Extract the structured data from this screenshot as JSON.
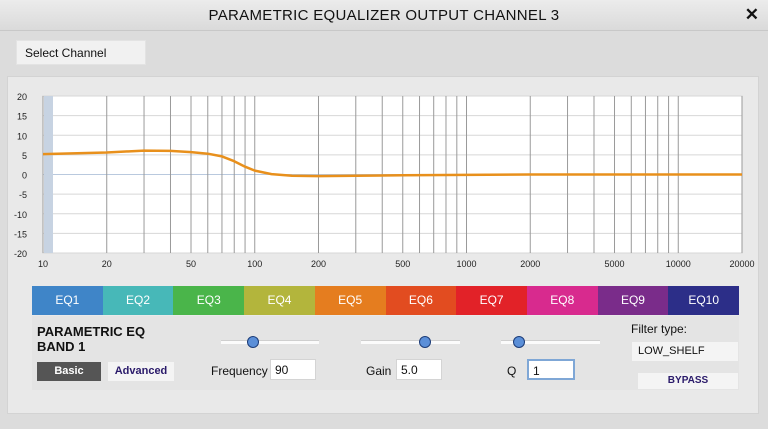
{
  "window": {
    "title": "PARAMETRIC EQUALIZER OUTPUT CHANNEL 3",
    "close_glyph": "✕"
  },
  "select_channel": {
    "label": "Select Channel"
  },
  "chart_data": {
    "type": "line",
    "x_scale": "log",
    "xlim": [
      10,
      20000
    ],
    "ylim": [
      -20,
      20
    ],
    "y_ticks": [
      "20",
      "15",
      "10",
      "5",
      "0",
      "-5",
      "-10",
      "-15",
      "-20"
    ],
    "x_tick_labels": [
      {
        "x": 10,
        "label": "10"
      },
      {
        "x": 20,
        "label": "20"
      },
      {
        "x": 50,
        "label": "50"
      },
      {
        "x": 100,
        "label": "100"
      },
      {
        "x": 200,
        "label": "200"
      },
      {
        "x": 500,
        "label": "500"
      },
      {
        "x": 1000,
        "label": "1000"
      },
      {
        "x": 2000,
        "label": "2000"
      },
      {
        "x": 5000,
        "label": "5000"
      },
      {
        "x": 10000,
        "label": "10000"
      },
      {
        "x": 20000,
        "label": "20000"
      }
    ],
    "series": [
      {
        "color": "#e8901c",
        "x": [
          10,
          20,
          30,
          40,
          50,
          60,
          70,
          80,
          90,
          100,
          120,
          150,
          200,
          300,
          500,
          1000,
          2000,
          5000,
          10000,
          20000
        ],
        "y": [
          5.2,
          5.6,
          6.1,
          6.0,
          5.7,
          5.3,
          4.6,
          3.4,
          2.0,
          1.0,
          0.1,
          -0.3,
          -0.4,
          -0.3,
          -0.2,
          -0.1,
          0,
          0,
          0,
          0
        ]
      }
    ]
  },
  "eq_tabs": [
    {
      "label": "EQ1",
      "color": "#3f85c8"
    },
    {
      "label": "EQ2",
      "color": "#47b8b8"
    },
    {
      "label": "EQ3",
      "color": "#4ab54a"
    },
    {
      "label": "EQ4",
      "color": "#b3b53c"
    },
    {
      "label": "EQ5",
      "color": "#e57d1f"
    },
    {
      "label": "EQ6",
      "color": "#e24c20"
    },
    {
      "label": "EQ7",
      "color": "#e22228"
    },
    {
      "label": "EQ8",
      "color": "#d82a8e"
    },
    {
      "label": "EQ9",
      "color": "#7a2c8a"
    },
    {
      "label": "EQ10",
      "color": "#2c2e88"
    }
  ],
  "band": {
    "title_line1": "PARAMETRIC EQ",
    "title_line2": "BAND 1",
    "basic_label": "Basic",
    "advanced_label": "Advanced",
    "frequency_label": "Frequency",
    "frequency_value": "90",
    "gain_label": "Gain",
    "gain_value": "5.0",
    "q_label": "Q",
    "q_value": "1",
    "filter_type_label": "Filter type:",
    "filter_type_value": "LOW_SHELF",
    "bypass_label": "BYPASS"
  }
}
